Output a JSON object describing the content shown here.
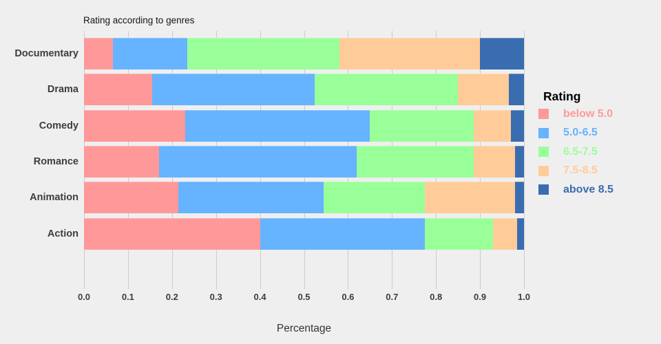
{
  "page": {
    "background": "#efefef"
  },
  "chart_data": {
    "type": "bar",
    "orientation": "horizontal",
    "stacked": true,
    "title": "Rating according to genres",
    "xlabel": "Percentage",
    "ylabel": "",
    "legend_title": "Rating",
    "legend_position": "right",
    "grid": true,
    "xlim": [
      0.0,
      1.0
    ],
    "x_ticks": [
      "0.0",
      "0.1",
      "0.2",
      "0.3",
      "0.4",
      "0.5",
      "0.6",
      "0.7",
      "0.8",
      "0.9",
      "1.0"
    ],
    "categories": [
      "Documentary",
      "Drama",
      "Comedy",
      "Romance",
      "Animation",
      "Action"
    ],
    "series": [
      {
        "name": "below 5.0",
        "color": "#ff9999",
        "values": [
          0.065,
          0.155,
          0.23,
          0.17,
          0.215,
          0.4
        ]
      },
      {
        "name": "5.0-6.5",
        "color": "#66b3ff",
        "values": [
          0.17,
          0.37,
          0.42,
          0.45,
          0.33,
          0.375
        ]
      },
      {
        "name": "6.5-7.5",
        "color": "#99ff99",
        "values": [
          0.345,
          0.325,
          0.235,
          0.265,
          0.23,
          0.155
        ]
      },
      {
        "name": "7.5-8.5",
        "color": "#ffcc99",
        "values": [
          0.32,
          0.115,
          0.085,
          0.095,
          0.205,
          0.055
        ]
      },
      {
        "name": "above 8.5",
        "color": "#3a6cb0",
        "values": [
          0.1,
          0.035,
          0.03,
          0.02,
          0.02,
          0.015
        ]
      }
    ],
    "style": {
      "plot_background": "#efefef",
      "gridline_color": "#cbcbcb"
    }
  }
}
